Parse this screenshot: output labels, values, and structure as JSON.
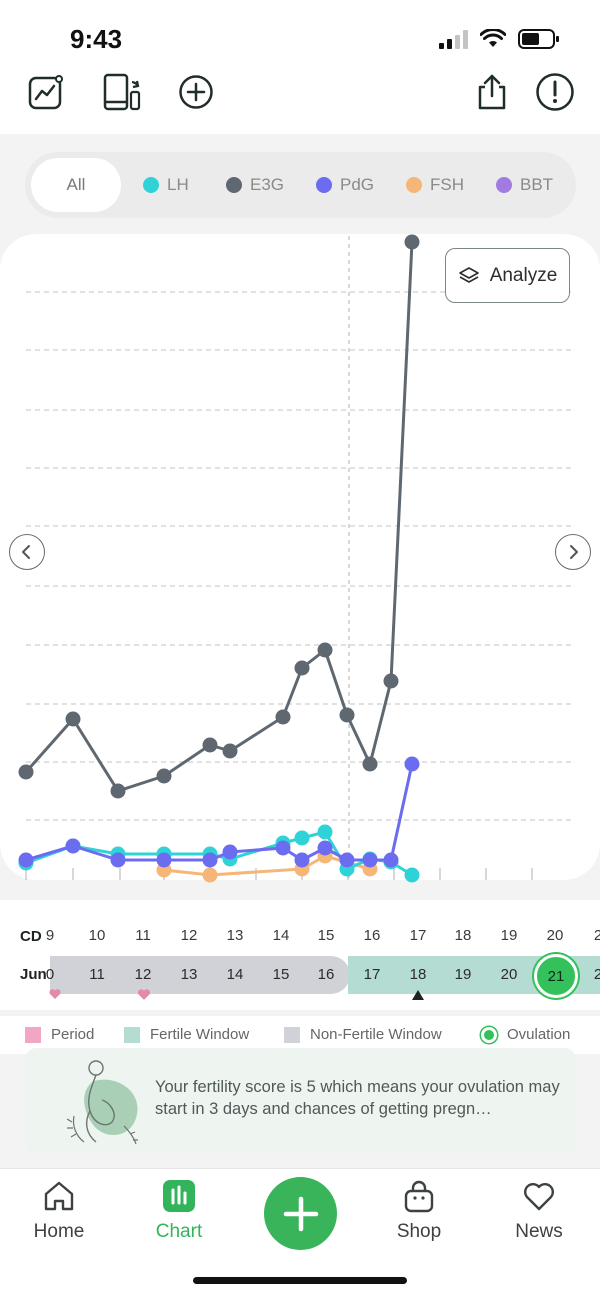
{
  "status_bar": {
    "time": "9:43"
  },
  "filters": {
    "all_label": "All",
    "items": [
      {
        "label": "LH",
        "color": "#2fd3d7"
      },
      {
        "label": "E3G",
        "color": "#5f6870"
      },
      {
        "label": "PdG",
        "color": "#6c6cf0"
      },
      {
        "label": "FSH",
        "color": "#f5b677"
      },
      {
        "label": "BBT",
        "color": "#a27be0"
      }
    ]
  },
  "analyze_label": "Analyze",
  "chart_data": {
    "type": "line",
    "x": [
      1,
      2,
      3,
      4,
      5,
      6,
      7,
      8,
      9,
      10,
      11,
      12,
      13,
      14,
      15,
      16,
      17
    ],
    "series": [
      {
        "name": "E3G",
        "color": "#5f6870",
        "points": [
          [
            1,
            772
          ],
          [
            2,
            719
          ],
          [
            3,
            791
          ],
          [
            4,
            776
          ],
          [
            5,
            745
          ],
          [
            6,
            751
          ],
          [
            7,
            717
          ],
          [
            8,
            668
          ],
          [
            9,
            650
          ],
          [
            10,
            715
          ],
          [
            11,
            764
          ],
          [
            12,
            681
          ],
          [
            13,
            242
          ]
        ]
      },
      {
        "name": "LH",
        "color": "#2fd3d7",
        "points": [
          [
            1,
            863
          ],
          [
            2,
            846
          ],
          [
            3,
            854
          ],
          [
            4,
            854
          ],
          [
            5,
            854
          ],
          [
            6,
            859
          ],
          [
            7,
            843
          ],
          [
            8,
            838
          ],
          [
            9,
            832
          ],
          [
            10,
            869
          ],
          [
            11,
            859
          ],
          [
            12,
            862
          ],
          [
            13,
            875
          ]
        ]
      },
      {
        "name": "PdG",
        "color": "#6c6cf0",
        "points": [
          [
            1,
            860
          ],
          [
            2,
            846
          ],
          [
            3,
            860
          ],
          [
            4,
            860
          ],
          [
            5,
            860
          ],
          [
            6,
            852
          ],
          [
            7,
            848
          ],
          [
            8,
            860
          ],
          [
            9,
            848
          ],
          [
            10,
            860
          ],
          [
            11,
            860
          ],
          [
            12,
            860
          ],
          [
            13,
            764
          ]
        ]
      },
      {
        "name": "FSH",
        "color": "#f5b677",
        "points": [
          [
            4,
            870
          ],
          [
            5,
            875
          ],
          [
            8,
            869
          ],
          [
            9,
            856
          ],
          [
            11,
            869
          ]
        ]
      }
    ]
  },
  "timeline": {
    "cd_label": "CD",
    "cd_days": [
      "9",
      "10",
      "11",
      "12",
      "13",
      "14",
      "15",
      "16",
      "17",
      "18",
      "19",
      "20",
      "2"
    ],
    "month_label": "Jun",
    "dates": [
      "0",
      "11",
      "12",
      "13",
      "14",
      "15",
      "16",
      "17",
      "18",
      "19",
      "20",
      "21",
      "2"
    ],
    "ovulation_date": "21"
  },
  "legend": [
    {
      "label": "Period",
      "color": "#f1a7c3",
      "shape": "square"
    },
    {
      "label": "Fertile Window",
      "color": "#b4dcd2",
      "shape": "square"
    },
    {
      "label": "Non-Fertile Window",
      "color": "#d0d2d8",
      "shape": "square"
    },
    {
      "label": "Ovulation",
      "color": "#34c05a",
      "shape": "circle"
    }
  ],
  "score": {
    "text": "Your fertility score is 5 which means your ovulation may start in 3 days and chances of getting pregn…"
  },
  "bottom_nav": {
    "items": [
      {
        "label": "Home"
      },
      {
        "label": "Chart"
      },
      {
        "label": "Shop"
      },
      {
        "label": "News"
      }
    ]
  }
}
